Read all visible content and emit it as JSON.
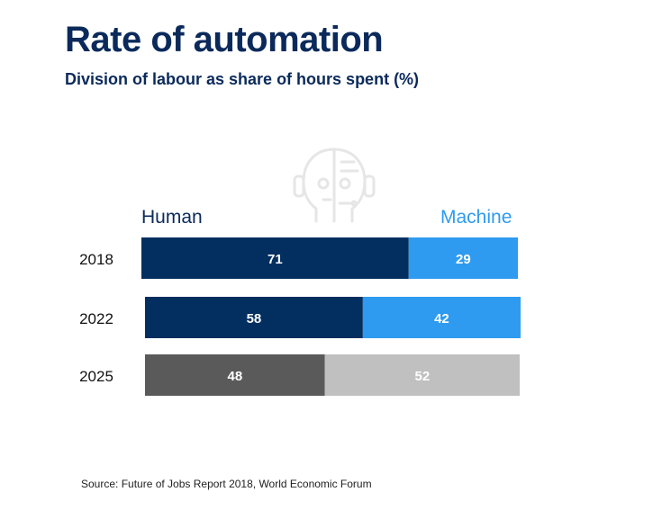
{
  "header": {
    "title": "Rate of automation",
    "subtitle": "Division of labour as share of hours spent (%)"
  },
  "legend": {
    "human": "Human",
    "machine": "Machine"
  },
  "source": "Source: Future of Jobs Report 2018, World Economic Forum",
  "icon": "robot-face-icon",
  "colors": {
    "human_current": "#022f60",
    "machine_current": "#2e9bf0",
    "human_future": "#5a5a5a",
    "machine_future": "#c0c0c0"
  },
  "chart_data": {
    "type": "bar",
    "orientation": "horizontal-stacked",
    "title": "Rate of automation",
    "subtitle": "Division of labour as share of hours spent (%)",
    "categories": [
      "2018",
      "2022",
      "2025"
    ],
    "series": [
      {
        "name": "Human",
        "values": [
          71,
          58,
          48
        ]
      },
      {
        "name": "Machine",
        "values": [
          29,
          42,
          52
        ]
      }
    ],
    "xlim": [
      0,
      100
    ],
    "grid": false,
    "legend": "top"
  }
}
